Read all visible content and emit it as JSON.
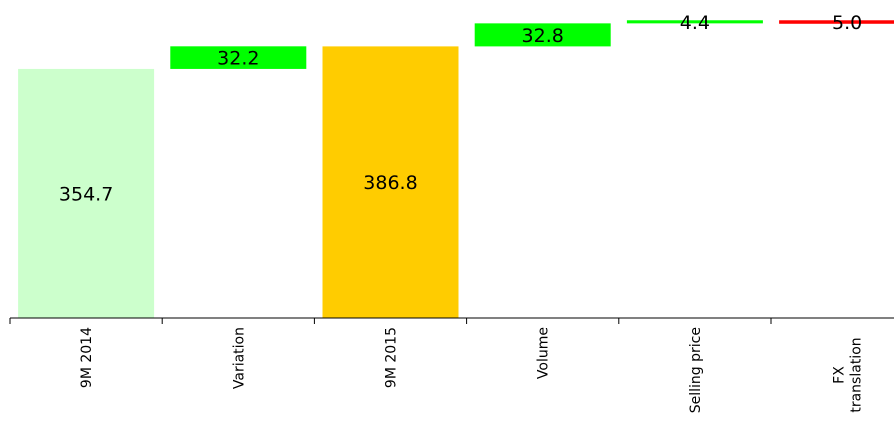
{
  "chart_data": {
    "type": "waterfall",
    "categories": [
      "9M 2014",
      "Variation",
      "9M 2015",
      "Volume",
      "Selling price",
      "FX translation"
    ],
    "tick_labels": [
      [
        "9M 2014"
      ],
      [
        "Variation"
      ],
      [
        "9M 2015"
      ],
      [
        "Volume"
      ],
      [
        "Selling price"
      ],
      [
        "FX",
        "translation"
      ]
    ],
    "values": [
      354.7,
      32.2,
      386.8,
      32.8,
      4.4,
      5.0
    ],
    "value_labels": [
      "354.7",
      "32.2",
      "386.8",
      "32.8",
      "4.4",
      "5.0"
    ],
    "kinds": [
      "total",
      "increase",
      "total",
      "increase",
      "increase",
      "decrease"
    ],
    "colors": [
      "#ccffcc",
      "#00ff00",
      "#ffcc00",
      "#00ff00",
      "#00ff00",
      "#ff0000"
    ],
    "title": "",
    "xlabel": "",
    "ylabel": "",
    "ylim": [
      0,
      390
    ],
    "grid": false,
    "legend": "none"
  }
}
